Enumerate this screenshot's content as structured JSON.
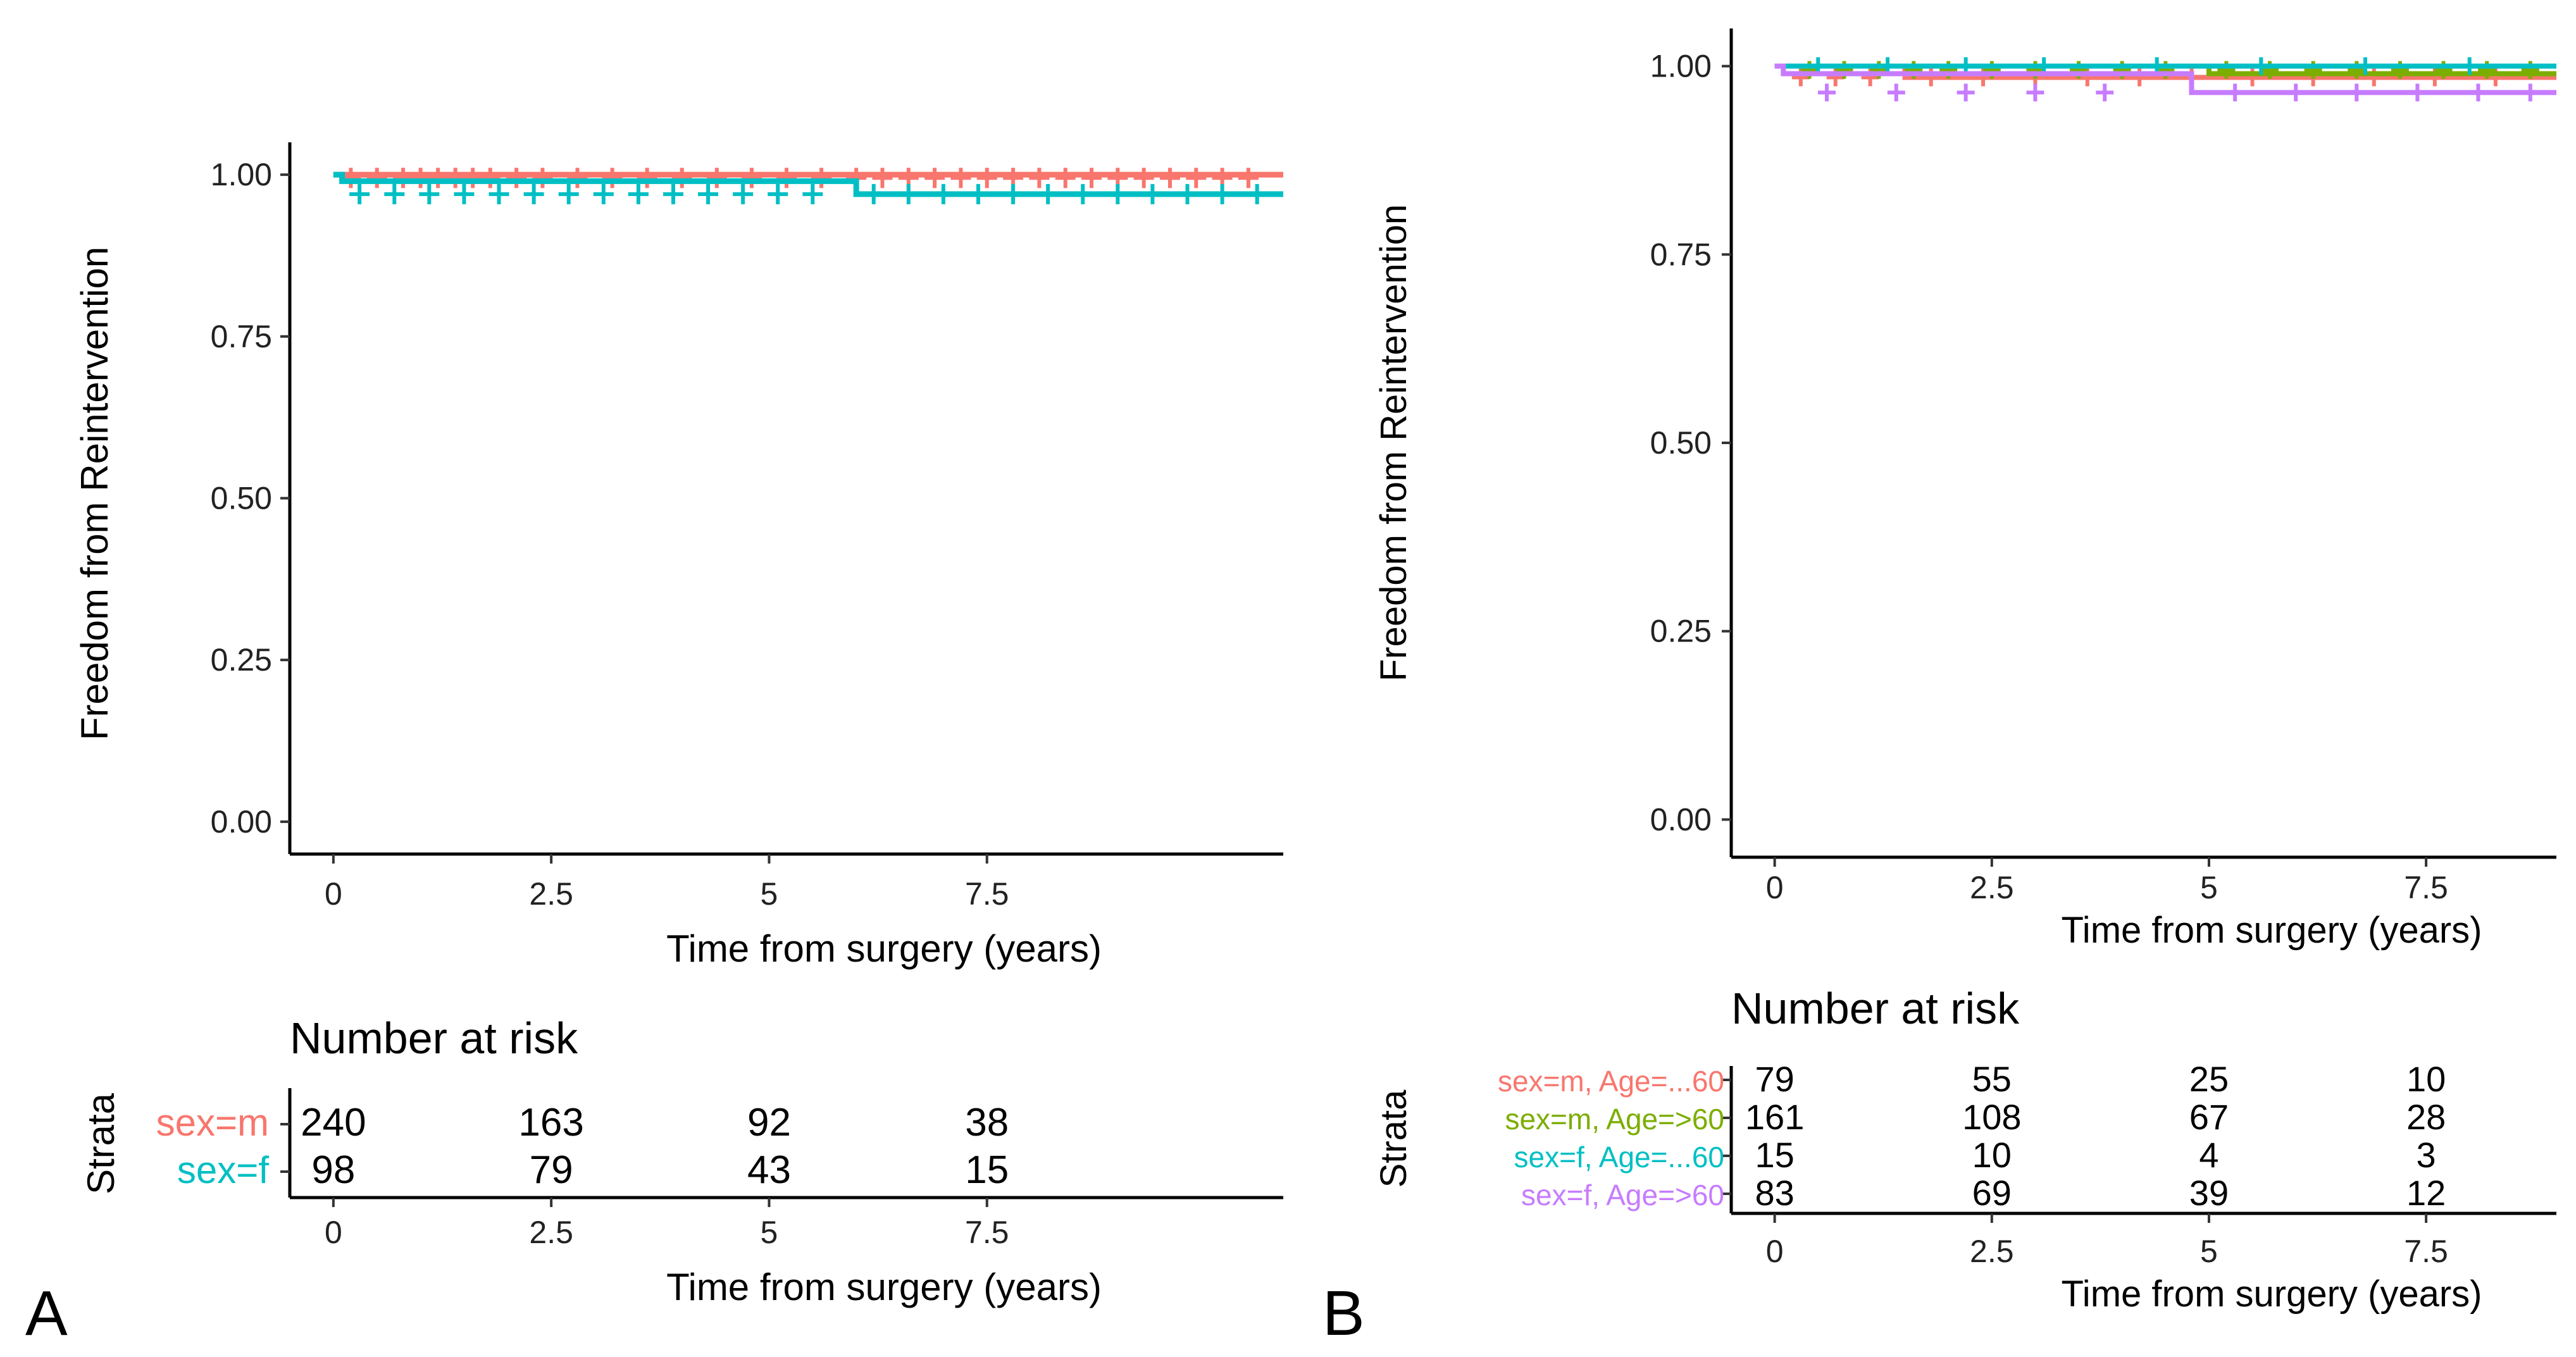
{
  "figure": {
    "panels": [
      {
        "label": "A",
        "ylabel": "Freedom from Reintervention",
        "xlabel": "Time from surgery (years)",
        "risk_title": "Number at risk",
        "strata_label": "Strata",
        "yticks": [
          "0.00",
          "0.25",
          "0.50",
          "0.75",
          "1.00"
        ],
        "xticks": [
          "0",
          "2.5",
          "5",
          "7.5"
        ],
        "risk_xticks": [
          "0",
          "2.5",
          "5",
          "7.5"
        ],
        "risk_xlabel": "Time from surgery (years)"
      },
      {
        "label": "B",
        "ylabel": "Freedom from Reintervention",
        "xlabel": "Time from surgery (years)",
        "risk_title": "Number at risk",
        "strata_label": "Strata",
        "yticks": [
          "0.00",
          "0.25",
          "0.50",
          "0.75",
          "1.00"
        ],
        "xticks": [
          "0",
          "2.5",
          "5",
          "7.5"
        ],
        "risk_xticks": [
          "0",
          "2.5",
          "5",
          "7.5"
        ],
        "risk_xlabel": "Time from surgery (years)"
      }
    ]
  },
  "chart_data": [
    {
      "type": "line",
      "subtype": "kaplan-meier",
      "panel": "A",
      "title": "",
      "xlabel": "Time from surgery (years)",
      "ylabel": "Freedom from Reintervention",
      "xlim": [
        -0.5,
        10.9
      ],
      "ylim": [
        -0.05,
        1.05
      ],
      "series": [
        {
          "name": "sex=m",
          "color": "#F8766D",
          "x": [
            0,
            10.9
          ],
          "y": [
            1.0,
            1.0
          ],
          "censor_x": [
            0.2,
            0.5,
            0.8,
            1.0,
            1.2,
            1.4,
            1.6,
            1.8,
            2.1,
            2.4,
            2.8,
            3.2,
            3.6,
            4.0,
            4.4,
            4.8,
            5.2,
            5.6,
            6.0,
            6.3,
            6.6,
            6.9,
            7.2,
            7.5,
            7.8,
            8.1,
            8.4,
            8.7,
            9.0,
            9.3,
            9.6,
            9.9,
            10.2,
            10.5
          ],
          "censor_y": 0.995,
          "at_risk": [
            240,
            163,
            92,
            38
          ]
        },
        {
          "name": "sex=f",
          "color": "#00BFC4",
          "x": [
            0,
            0.1,
            2.0,
            6.0,
            10.9
          ],
          "y": [
            1.0,
            0.99,
            0.99,
            0.97,
            0.97
          ],
          "censor_x": [
            0.3,
            0.7,
            1.1,
            1.5,
            1.9,
            2.3,
            2.7,
            3.1,
            3.5,
            3.9,
            4.3,
            4.7,
            5.1,
            5.5,
            6.2,
            6.6,
            7.0,
            7.4,
            7.8,
            8.2,
            8.6,
            9.0,
            9.4,
            9.8,
            10.2,
            10.6
          ],
          "censor_y": 0.97,
          "at_risk": [
            98,
            79,
            43,
            15
          ]
        }
      ],
      "risk_table": {
        "title": "Number at risk",
        "times": [
          0,
          2.5,
          5,
          7.5
        ]
      }
    },
    {
      "type": "line",
      "subtype": "kaplan-meier",
      "panel": "B",
      "title": "",
      "xlabel": "Time from surgery (years)",
      "ylabel": "Freedom from Reintervention",
      "xlim": [
        -0.5,
        9.0
      ],
      "ylim": [
        -0.05,
        1.05
      ],
      "series": [
        {
          "name": "sex=m, Age=...60",
          "color": "#F8766D",
          "x": [
            0,
            1.5,
            1.5,
            9.0
          ],
          "y": [
            1.0,
            1.0,
            0.985,
            0.985
          ],
          "censor_x": [
            0.3,
            0.7,
            1.1,
            1.8,
            2.4,
            3.0,
            3.6,
            4.2,
            4.8,
            5.5,
            6.2,
            6.9,
            7.6,
            8.3
          ],
          "censor_y": 0.985,
          "at_risk": [
            79,
            55,
            25,
            10
          ]
        },
        {
          "name": "sex=m, Age=>60",
          "color": "#7CAE00",
          "x": [
            0,
            5.0,
            5.0,
            9.0
          ],
          "y": [
            1.0,
            1.0,
            0.99,
            0.99
          ],
          "censor_x": [
            0.4,
            0.8,
            1.2,
            1.6,
            2.0,
            2.5,
            3.0,
            3.5,
            4.0,
            4.5,
            5.2,
            5.7,
            6.2,
            6.7,
            7.2,
            7.7,
            8.2,
            8.7
          ],
          "censor_y": 0.995,
          "at_risk": [
            161,
            108,
            67,
            28
          ]
        },
        {
          "name": "sex=f, Age=...60",
          "color": "#00BFC4",
          "x": [
            0,
            9.0
          ],
          "y": [
            1.0,
            1.0
          ],
          "censor_x": [
            0.5,
            1.3,
            2.2,
            3.1,
            4.4,
            5.6,
            6.8,
            8.0
          ],
          "censor_y": 1.0,
          "at_risk": [
            15,
            10,
            4,
            3
          ]
        },
        {
          "name": "sex=f, Age=>60",
          "color": "#C77CFF",
          "x": [
            0,
            0.1,
            4.8,
            4.8,
            9.0
          ],
          "y": [
            1.0,
            0.99,
            0.99,
            0.965,
            0.965
          ],
          "censor_x": [
            0.6,
            1.4,
            2.2,
            3.0,
            3.8,
            5.3,
            6.0,
            6.7,
            7.4,
            8.1,
            8.7
          ],
          "censor_y": 0.965,
          "at_risk": [
            83,
            69,
            39,
            12
          ]
        }
      ],
      "risk_table": {
        "title": "Number at risk",
        "times": [
          0,
          2.5,
          5,
          7.5
        ]
      }
    }
  ]
}
